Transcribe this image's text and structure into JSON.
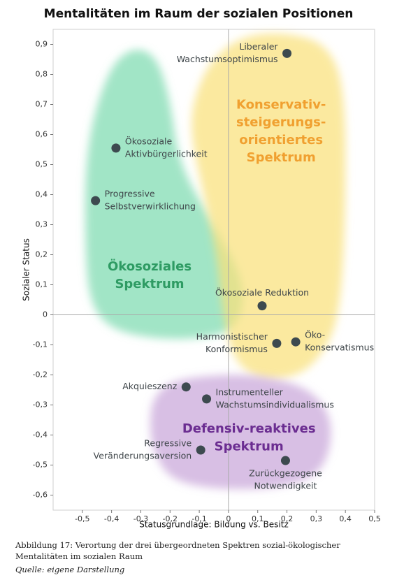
{
  "chart_data": {
    "type": "scatter",
    "title": "Mentalitäten im Raum der sozialen Positionen",
    "xlabel": "Statusgrundlage: Bildung vs. Besitz",
    "ylabel": "Sozialer Status",
    "xlim": [
      -0.6,
      0.5
    ],
    "ylim": [
      -0.65,
      0.95
    ],
    "x_ticks": [
      -0.5,
      -0.4,
      -0.3,
      -0.2,
      -0.1,
      0,
      0.1,
      0.2,
      0.3,
      0.4,
      0.5
    ],
    "y_ticks": [
      0.9,
      0.8,
      0.7,
      0.6,
      0.5,
      0.4,
      0.3,
      0.2,
      0.1,
      0,
      -0.1,
      -0.2,
      -0.3,
      -0.4,
      -0.5,
      -0.6
    ],
    "x_tick_labels": [
      "-0,5",
      "-0,4",
      "-0,3",
      "-0,2",
      "-0,1",
      "0",
      "0,1",
      "0,2",
      "0,3",
      "0,4",
      "0,5"
    ],
    "y_tick_labels": [
      "0,9",
      "0,8",
      "0,7",
      "0,6",
      "0,5",
      "0,4",
      "0,3",
      "0,2",
      "0,1",
      "0",
      "-0,1",
      "-0,2",
      "-0,3",
      "-0,4",
      "-0,5",
      "-0,6"
    ],
    "grid": false,
    "points": [
      {
        "label": "Liberaler Wachstumsoptimismus",
        "lines": [
          "Liberaler",
          "Wachstumsoptimismus"
        ],
        "x": 0.2,
        "y": 0.87,
        "label_side": "left"
      },
      {
        "label": "Ökosoziale Aktivbürgerlichkeit",
        "lines": [
          "Ökosoziale",
          "Aktivbürgerlichkeit"
        ],
        "x": -0.385,
        "y": 0.555,
        "label_side": "right"
      },
      {
        "label": "Progressive Selbstverwirklichung",
        "lines": [
          "Progressive",
          "Selbstverwirklichung"
        ],
        "x": -0.455,
        "y": 0.38,
        "label_side": "right"
      },
      {
        "label": "Ökosoziale Reduktion",
        "lines": [
          "Ökosoziale Reduktion"
        ],
        "x": 0.115,
        "y": 0.03,
        "label_side": "above"
      },
      {
        "label": "Harmonistischer Konformismus",
        "lines": [
          "Harmonistischer",
          "Konformismus"
        ],
        "x": 0.165,
        "y": -0.095,
        "label_side": "left"
      },
      {
        "label": "Öko-Konservatismus",
        "lines": [
          "Öko-",
          "Konservatismus"
        ],
        "x": 0.23,
        "y": -0.09,
        "label_side": "right"
      },
      {
        "label": "Akquieszenz",
        "lines": [
          "Akquieszenz"
        ],
        "x": -0.145,
        "y": -0.24,
        "label_side": "left"
      },
      {
        "label": "Instrumenteller Wachstumsindividualismus",
        "lines": [
          "Instrumenteller",
          "Wachstumsindividualismus"
        ],
        "x": -0.075,
        "y": -0.28,
        "label_side": "right"
      },
      {
        "label": "Regressive Veränderungsaversion",
        "lines": [
          "Regressive",
          "Veränderungsaversion"
        ],
        "x": -0.095,
        "y": -0.45,
        "label_side": "left"
      },
      {
        "label": "Zurückgezogene Notwendigkeit",
        "lines": [
          "Zurückgezogene",
          "Notwendigkeit"
        ],
        "x": 0.195,
        "y": -0.485,
        "label_side": "below"
      }
    ],
    "regions": [
      {
        "name": "Ökosoziales Spektrum",
        "lines": [
          "Ökosoziales",
          "Spektrum"
        ],
        "color": "#7ddbb0",
        "text_color": "#2e9b63"
      },
      {
        "name": "Konservativ-steigerungs-orientiertes Spektrum",
        "lines": [
          "Konservativ-",
          "steigerungs-",
          "orientiertes",
          "Spektrum"
        ],
        "color": "#f9e07a",
        "text_color": "#f0a030"
      },
      {
        "name": "Defensiv-reaktives Spektrum",
        "lines": [
          "Defensiv-reaktives",
          "Spektrum"
        ],
        "color": "#c9a6da",
        "text_color": "#6b2d91"
      }
    ],
    "point_color": "#3d4a4f"
  },
  "caption": "Abbildung 17: Verortung der drei übergeordneten Spektren sozial-ökologischer Mentalitäten im sozialen Raum",
  "source": "Quelle: eigene Darstellung"
}
